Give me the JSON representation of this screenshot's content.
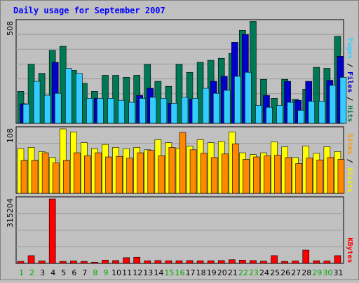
{
  "chart_data": {
    "type": "bar",
    "title": "Daily usage for September 2007",
    "days": [
      "1",
      "2",
      "3",
      "4",
      "5",
      "6",
      "7",
      "8",
      "9",
      "10",
      "11",
      "12",
      "13",
      "14",
      "15",
      "16",
      "17",
      "18",
      "19",
      "20",
      "21",
      "22",
      "23",
      "24",
      "25",
      "26",
      "27",
      "28",
      "29",
      "30",
      "31"
    ],
    "weekend_days": [
      "1",
      "2",
      "8",
      "9",
      "15",
      "16",
      "22",
      "23",
      "29",
      "30"
    ],
    "panels": [
      {
        "id": "top",
        "ymax_label": "508",
        "ymax": 508,
        "legend": [
          {
            "text": "Pages",
            "color": "#33ccff"
          },
          {
            "text": " / ",
            "color": "#000000"
          },
          {
            "text": "Files",
            "color": "#0000cc"
          },
          {
            "text": " / ",
            "color": "#000000"
          },
          {
            "text": "Hits",
            "color": "#007755"
          }
        ],
        "series": [
          {
            "key": "hits",
            "color": "#007755",
            "values": [
              160,
              295,
              250,
              365,
              385,
              265,
              200,
              160,
              240,
              240,
              230,
              240,
              295,
              210,
              185,
              295,
              255,
              305,
              315,
              325,
              350,
              465,
              510,
              220,
              125,
              220,
              120,
              170,
              280,
              275,
              435
            ]
          },
          {
            "key": "files",
            "color": "#0000cc",
            "values": [
              98,
              0,
              0,
              305,
              0,
              0,
              0,
              125,
              0,
              0,
              0,
              140,
              175,
              0,
              100,
              0,
              120,
              0,
              210,
              235,
              405,
              445,
              0,
              140,
              0,
              210,
              115,
              210,
              0,
              215,
              335
            ]
          },
          {
            "key": "pages",
            "color": "#33ccff",
            "values": [
              95,
              210,
              140,
              150,
              275,
              250,
              125,
              125,
              125,
              115,
              105,
              125,
              130,
              125,
              100,
              130,
              125,
              175,
              150,
              165,
              235,
              255,
              90,
              80,
              90,
              105,
              65,
              110,
              110,
              190,
              230
            ]
          }
        ]
      },
      {
        "id": "middle",
        "ymax_label": "108",
        "ymax": 108,
        "legend": [
          {
            "text": "Sites",
            "color": "#ff9900"
          },
          {
            "text": " / ",
            "color": "#000000"
          },
          {
            "text": "Visits",
            "color": "#eeee00"
          }
        ],
        "series": [
          {
            "key": "visits",
            "color": "#ffff00",
            "values": [
              75,
              77,
              70,
              60,
              108,
              103,
              85,
              75,
              82,
              77,
              75,
              77,
              73,
              90,
              85,
              76,
              79,
              90,
              85,
              87,
              103,
              68,
              65,
              68,
              86,
              78,
              60,
              79,
              67,
              78,
              70
            ]
          },
          {
            "key": "sites",
            "color": "#ff8800",
            "values": [
              55,
              55,
              68,
              51,
              55,
              68,
              63,
              68,
              61,
              62,
              59,
              68,
              72,
              63,
              77,
              102,
              73,
              67,
              60,
              66,
              83,
              57,
              61,
              63,
              64,
              60,
              50,
              59,
              56,
              60,
              57
            ]
          }
        ]
      },
      {
        "id": "bottom",
        "ymax_label": "315204",
        "ymax": 315204,
        "legend": [
          {
            "text": "KBytes",
            "color": "#ff0000"
          }
        ],
        "series": [
          {
            "key": "kbytes",
            "color": "#ff0000",
            "values": [
              10000,
              38000,
              12000,
              315204,
              10000,
              12000,
              10000,
              6000,
              16000,
              14000,
              28000,
              30000,
              13000,
              14000,
              13000,
              13000,
              14000,
              13000,
              13000,
              14000,
              18000,
              16000,
              14000,
              11000,
              38000,
              10000,
              12000,
              65000,
              13000,
              12000,
              38000
            ]
          }
        ]
      }
    ]
  }
}
